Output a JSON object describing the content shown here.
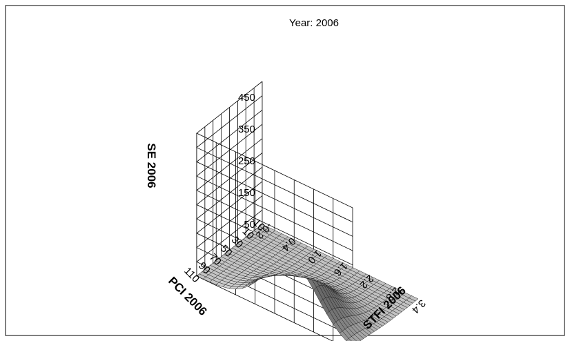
{
  "chart_data": {
    "type": "surface3d",
    "title": "Year: 2006",
    "xlabel": "STFI 2006",
    "ylabel": "PCI 2006",
    "zlabel": "SE 2006",
    "x_ticks": [
      "-0.2",
      "0.4",
      "1.0",
      "1.6",
      "2.2",
      "2.8",
      "3.4"
    ],
    "y_ticks": [
      "-10",
      "10",
      "30",
      "50",
      "70",
      "90",
      "110"
    ],
    "z_ticks": [
      "50",
      "150",
      "250",
      "350",
      "450"
    ],
    "xlim": [
      -0.2,
      3.4
    ],
    "ylim": [
      -10,
      110
    ],
    "zlim": [
      50,
      500
    ],
    "surface": {
      "description": "single bell-shaped peak on a flat base",
      "base_level": 50,
      "peak": {
        "x": 2.0,
        "y": 105,
        "z": 240
      },
      "spread_x": 0.6,
      "spread_y": 30
    },
    "grid": true,
    "colors": {
      "surface_light": "#d4d4d4",
      "surface_dark": "#5a5a5a",
      "grid": "#000000"
    }
  }
}
